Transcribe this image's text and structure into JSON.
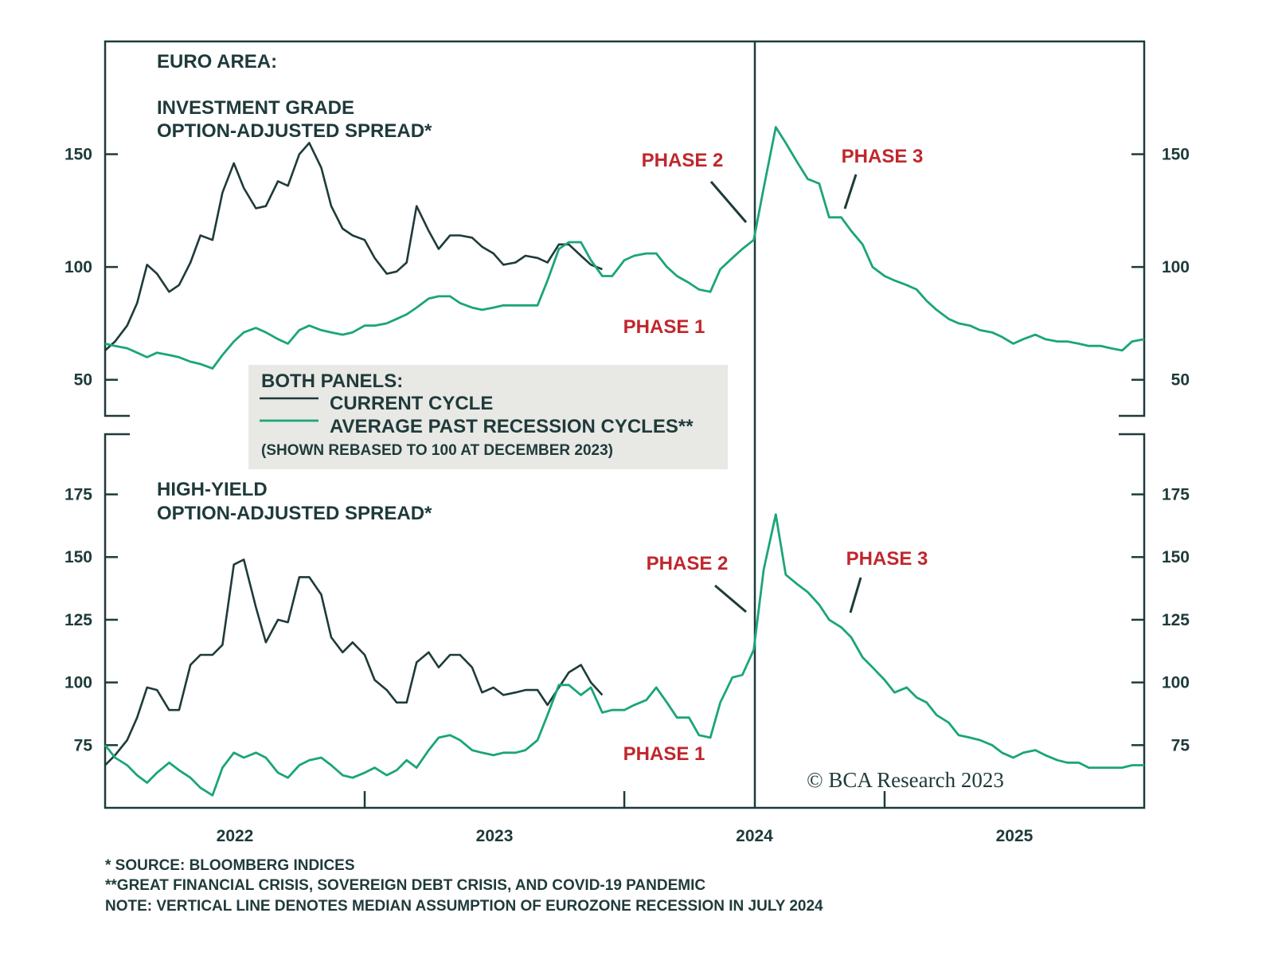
{
  "colors": {
    "current": "#1f3a3a",
    "average": "#1aa57a",
    "phase": "#c0272d",
    "legend_bg": "#e8e8e4"
  },
  "titles": {
    "region": "EURO AREA:",
    "top_line1": "INVESTMENT GRADE",
    "top_line2": "OPTION-ADJUSTED SPREAD*",
    "bottom_line1": "HIGH-YIELD",
    "bottom_line2": "OPTION-ADJUSTED SPREAD*"
  },
  "legend": {
    "heading": "BOTH PANELS:",
    "current": "CURRENT CYCLE",
    "average": "AVERAGE PAST RECESSION CYCLES**",
    "note": "(SHOWN REBASED TO 100 AT DECEMBER 2023)"
  },
  "annotations": {
    "phase1": "PHASE 1",
    "phase2": "PHASE 2",
    "phase3": "PHASE 3"
  },
  "watermark": "© BCA Research 2023",
  "footnotes": [
    "*  SOURCE: BLOOMBERG INDICES",
    "**GREAT FINANCIAL CRISIS, SOVEREIGN DEBT CRISIS, AND COVID-19 PANDEMIC",
    "NOTE: VERTICAL LINE DENOTES MEDIAN ASSUMPTION OF EUROZONE RECESSION IN JULY 2024"
  ],
  "chart_data": [
    {
      "type": "line",
      "title": "INVESTMENT GRADE OPTION-ADJUSTED SPREAD*",
      "xlim": [
        "2022-01-01",
        "2026-01-01"
      ],
      "ylim": [
        34,
        200
      ],
      "yticks": [
        50,
        100,
        150
      ],
      "xtick_labels": [
        "2022",
        "2023",
        "2024",
        "2025"
      ],
      "vertical_line": "2024-07-01",
      "grid": false,
      "series": [
        {
          "name": "CURRENT CYCLE",
          "values": [
            63,
            67,
            74,
            84,
            101,
            97,
            89,
            92,
            102,
            114,
            112,
            133,
            146,
            135,
            126,
            127,
            138,
            136,
            150,
            155,
            144,
            127,
            117,
            114,
            112,
            104,
            97,
            98,
            102,
            127,
            116,
            108,
            114,
            114,
            113,
            109,
            106,
            101,
            102,
            105,
            104,
            102,
            110,
            110,
            105,
            101,
            99
          ]
        },
        {
          "name": "AVERAGE PAST RECESSION CYCLES**",
          "values": [
            66,
            65,
            64,
            62,
            60,
            62,
            61,
            60,
            58,
            57,
            55,
            61,
            67,
            71,
            73,
            71,
            68,
            66,
            72,
            74,
            72,
            71,
            70,
            71,
            74,
            74,
            75,
            77,
            79,
            82,
            86,
            87,
            87,
            84,
            82,
            81,
            82,
            83,
            83,
            83,
            83,
            94,
            108,
            111,
            111,
            103,
            96,
            96,
            103,
            105,
            106,
            106,
            100,
            96,
            93,
            90,
            89,
            99,
            104,
            108,
            112,
            135,
            162,
            155,
            146,
            139,
            137,
            122,
            122,
            116,
            110,
            100,
            96,
            94,
            92,
            90,
            85,
            81,
            77,
            75,
            74,
            72,
            71,
            69,
            66,
            68,
            70,
            68,
            67,
            67,
            66,
            65,
            65,
            64,
            63,
            67,
            68
          ]
        }
      ]
    },
    {
      "type": "line",
      "title": "HIGH-YIELD OPTION-ADJUSTED SPREAD*",
      "xlim": [
        "2022-01-01",
        "2026-01-01"
      ],
      "ylim": [
        50,
        199
      ],
      "yticks": [
        75,
        100,
        125,
        150,
        175
      ],
      "xtick_labels": [
        "2022",
        "2023",
        "2024",
        "2025"
      ],
      "vertical_line": "2024-07-01",
      "grid": false,
      "series": [
        {
          "name": "CURRENT CYCLE",
          "values": [
            67,
            71,
            77,
            86,
            98,
            97,
            89,
            89,
            107,
            111,
            111,
            115,
            147,
            149,
            130,
            116,
            125,
            124,
            142,
            142,
            135,
            118,
            112,
            116,
            111,
            101,
            97,
            92,
            92,
            108,
            112,
            106,
            111,
            111,
            106,
            96,
            98,
            95,
            96,
            97,
            97,
            91,
            98,
            104,
            107,
            100,
            95
          ]
        },
        {
          "name": "AVERAGE PAST RECESSION CYCLES**",
          "values": [
            75,
            70,
            67,
            63,
            60,
            64,
            68,
            65,
            62,
            58,
            55,
            66,
            72,
            70,
            72,
            70,
            64,
            62,
            67,
            69,
            70,
            67,
            63,
            62,
            64,
            66,
            63,
            65,
            69,
            66,
            73,
            78,
            79,
            77,
            73,
            72,
            71,
            72,
            72,
            73,
            77,
            87,
            99,
            99,
            95,
            98,
            88,
            89,
            89,
            91,
            93,
            98,
            92,
            86,
            86,
            79,
            78,
            92,
            102,
            103,
            113,
            145,
            167,
            143,
            139,
            136,
            131,
            125,
            122,
            118,
            110,
            106,
            101,
            96,
            98,
            94,
            92,
            87,
            84,
            79,
            78,
            77,
            75,
            72,
            70,
            72,
            73,
            71,
            69,
            68,
            68,
            66,
            66,
            66,
            66,
            67,
            67
          ]
        }
      ]
    }
  ]
}
